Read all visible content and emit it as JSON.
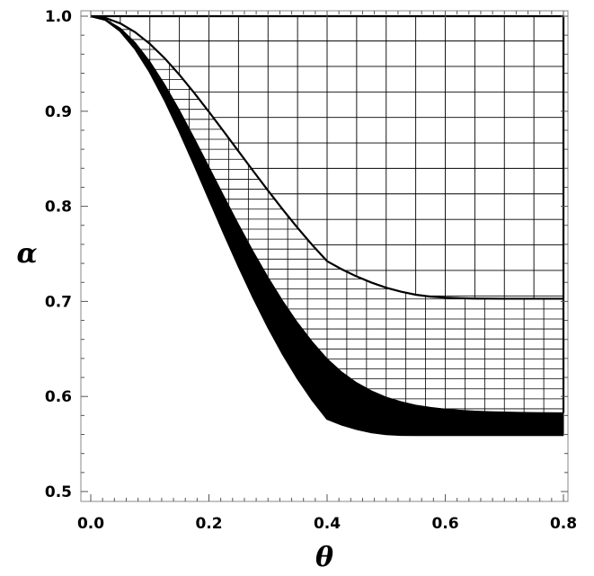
{
  "chart_data": {
    "type": "area",
    "xlabel": "θ",
    "ylabel": "α",
    "xlim": [
      0.0,
      0.8
    ],
    "ylim": [
      0.49,
      1.0
    ],
    "x_ticks": [
      0.0,
      0.2,
      0.4,
      0.6,
      0.8
    ],
    "x_tick_labels": [
      "0.0",
      "0.2",
      "0.4",
      "0.6",
      "0.8"
    ],
    "y_ticks": [
      0.5,
      0.6,
      0.7,
      0.8,
      0.9,
      1.0
    ],
    "y_tick_labels": [
      "0.5",
      "0.6",
      "0.7",
      "0.8",
      "0.9",
      "1.0"
    ],
    "grid": false,
    "colors": {
      "ink": "#000000",
      "background": "#ffffff"
    },
    "curves": {
      "x": [
        0.0,
        0.025,
        0.05,
        0.075,
        0.1,
        0.125,
        0.15,
        0.175,
        0.2,
        0.225,
        0.25,
        0.275,
        0.3,
        0.325,
        0.35,
        0.375,
        0.4,
        0.425,
        0.45,
        0.475,
        0.5,
        0.525,
        0.55,
        0.575,
        0.6,
        0.625,
        0.65,
        0.675,
        0.7,
        0.725,
        0.75,
        0.775,
        0.8
      ],
      "upper": [
        1.0,
        0.9981,
        0.9924,
        0.9832,
        0.9709,
        0.9558,
        0.9384,
        0.9194,
        0.8994,
        0.8788,
        0.8579,
        0.8371,
        0.8166,
        0.7966,
        0.7774,
        0.7592,
        0.7423,
        0.7337,
        0.7262,
        0.7198,
        0.7144,
        0.7102,
        0.707,
        0.705,
        0.704,
        0.7034,
        0.703,
        0.7029,
        0.7028,
        0.7028,
        0.7028,
        0.7028,
        0.7028
      ],
      "lower_outer": [
        1.0,
        0.996,
        0.9843,
        0.9657,
        0.9412,
        0.9119,
        0.8791,
        0.8441,
        0.8081,
        0.7722,
        0.7373,
        0.7041,
        0.6731,
        0.6447,
        0.6191,
        0.5963,
        0.5765,
        0.5703,
        0.5657,
        0.5624,
        0.5604,
        0.5595,
        0.5594,
        0.5594,
        0.5594,
        0.5594,
        0.5594,
        0.5594,
        0.5594,
        0.5594,
        0.5594,
        0.5594,
        0.5594
      ],
      "lower_inner": [
        1.0,
        0.9968,
        0.9874,
        0.9724,
        0.9524,
        0.9283,
        0.9011,
        0.8718,
        0.8415,
        0.811,
        0.7811,
        0.7524,
        0.7254,
        0.7004,
        0.6776,
        0.6574,
        0.6397,
        0.6256,
        0.6145,
        0.6059,
        0.5993,
        0.5945,
        0.5909,
        0.5885,
        0.5867,
        0.5855,
        0.5846,
        0.584,
        0.5836,
        0.5833,
        0.5831,
        0.5829,
        0.5828
      ]
    },
    "hatch": {
      "upper_region_vertical_x": [
        0.05,
        0.1,
        0.15,
        0.2,
        0.25,
        0.3,
        0.35,
        0.4,
        0.45,
        0.5,
        0.55,
        0.6,
        0.65,
        0.7,
        0.75
      ],
      "upper_region_horizontal_y": [
        0.7058,
        0.7326,
        0.7594,
        0.7862,
        0.8131,
        0.8399,
        0.8667,
        0.8935,
        0.9203,
        0.9471,
        0.9739
      ],
      "lower_region_vertical_x": [
        0.0333,
        0.0667,
        0.1,
        0.1333,
        0.1667,
        0.2,
        0.2333,
        0.2667,
        0.3,
        0.3333,
        0.3667,
        0.4,
        0.4333,
        0.4667,
        0.5,
        0.5333,
        0.5667,
        0.6,
        0.6333,
        0.6667,
        0.7,
        0.7333,
        0.7667
      ],
      "lower_region_horizontal_spacing": 0.0105
    }
  }
}
